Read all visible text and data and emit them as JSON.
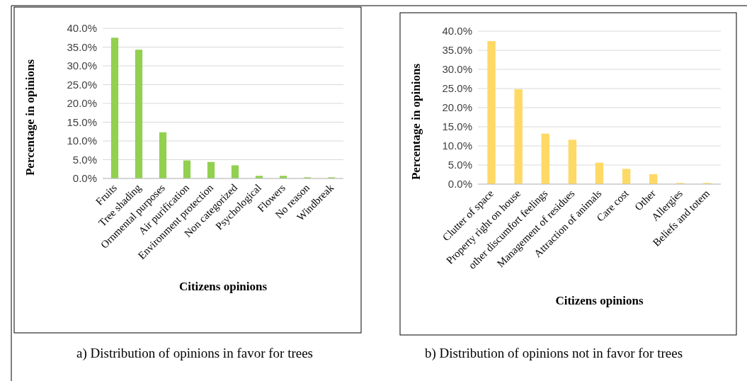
{
  "chart_data": [
    {
      "type": "bar",
      "title": "a)    Distribution of opinions in favor for trees",
      "xlabel": "Citizens opinions",
      "ylabel": "Percentage in opinions",
      "categories": [
        "Fruits",
        "Tree shading",
        "Ornmental purposes",
        "Air purification",
        "Environment protection",
        "Non categorized",
        "Psychological",
        "Flowers",
        "No reason",
        "Windbreak"
      ],
      "values": [
        37.5,
        34.3,
        12.3,
        4.8,
        4.4,
        3.5,
        0.7,
        0.7,
        0.3,
        0.3
      ],
      "color": "#92d050",
      "ylim": [
        0,
        40
      ],
      "yticks": [
        {
          "value": 0,
          "label": "0.0%"
        },
        {
          "value": 5,
          "label": "5.0%"
        },
        {
          "value": 10,
          "label": "10.0%"
        },
        {
          "value": 15,
          "label": "15.0%"
        },
        {
          "value": 20,
          "label": "20.0%"
        },
        {
          "value": 25,
          "label": "25.0%"
        },
        {
          "value": 30,
          "label": "30.0%"
        },
        {
          "value": 35,
          "label": "35.0%"
        },
        {
          "value": 40,
          "label": "40.0%"
        }
      ],
      "grid": "y"
    },
    {
      "type": "bar",
      "title": "b) Distribution of opinions not in favor for trees",
      "xlabel": "Citizens opinions",
      "ylabel": "Percentage in opinions",
      "categories": [
        "Clutter of space",
        "Property right on house",
        "other discumfort feelings",
        "Management of residues",
        "Attraction of animals",
        "Care cost",
        "Other",
        "Allergies",
        "Beliefs and totem"
      ],
      "values": [
        37.4,
        24.8,
        13.2,
        11.6,
        5.6,
        4.0,
        2.6,
        0.3,
        0.3
      ],
      "color": "#ffd966",
      "ylim": [
        0,
        40
      ],
      "yticks": [
        {
          "value": 0,
          "label": "0.0%"
        },
        {
          "value": 5,
          "label": "5.0%"
        },
        {
          "value": 10,
          "label": "10.0%"
        },
        {
          "value": 15,
          "label": "15.0%"
        },
        {
          "value": 20,
          "label": "20.0%"
        },
        {
          "value": 25,
          "label": "25.0%"
        },
        {
          "value": 30,
          "label": "30.0%"
        },
        {
          "value": 35,
          "label": "35.0%"
        },
        {
          "value": 40,
          "label": "40.0%"
        }
      ],
      "grid": "y"
    }
  ]
}
